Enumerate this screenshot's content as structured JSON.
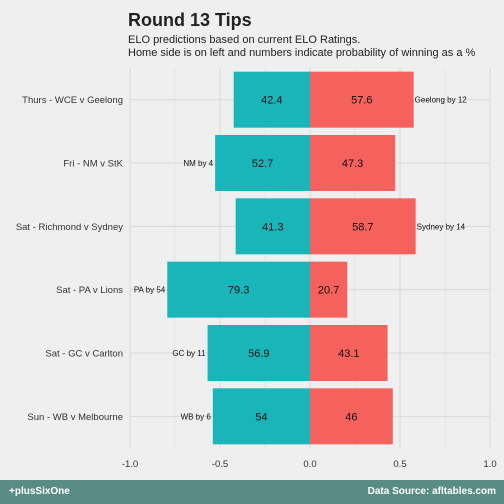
{
  "chart_data": {
    "type": "bar",
    "orientation": "horizontal-diverging",
    "title": "Round 13 Tips",
    "subtitle_lines": [
      "ELO predictions based on current ELO Ratings.",
      "Home side is on left and numbers indicate probability of winning as a %"
    ],
    "categories": [
      "Thurs - WCE v Geelong",
      "Fri - NM v StK",
      "Sat - Richmond v Sydney",
      "Sat - PA v Lions",
      "Sat - GC v Carlton",
      "Sun - WB v Melbourne"
    ],
    "series": [
      {
        "values": [
          42.4,
          52.7,
          41.3,
          79.3,
          56.9,
          54
        ],
        "color": "#1ab5b8"
      },
      {
        "values": [
          57.6,
          47.3,
          58.7,
          20.7,
          43.1,
          46
        ],
        "color": "#f5615c"
      }
    ],
    "tip_labels": [
      "Geelong by 12",
      "NM by 4",
      "Sydney by 14",
      "PA by 54",
      "GC by 11",
      "WB by 6"
    ],
    "tip_side": [
      "right",
      "left",
      "right",
      "left",
      "left",
      "left"
    ],
    "x_ticks": [
      -1.0,
      -0.5,
      0.0,
      0.5,
      1.0
    ],
    "x_tick_labels": [
      "-1.0",
      "-0.5",
      "0.0",
      "0.5",
      "1.0"
    ],
    "xlim": [
      -1.0,
      1.0
    ],
    "grid": true
  },
  "footer": {
    "left": "+plusSixOne",
    "right": "Data Source: afltables.com"
  },
  "colors": {
    "background": "#efefef",
    "grid": "#d9d9d9",
    "footer_bg": "#5a8c86"
  }
}
